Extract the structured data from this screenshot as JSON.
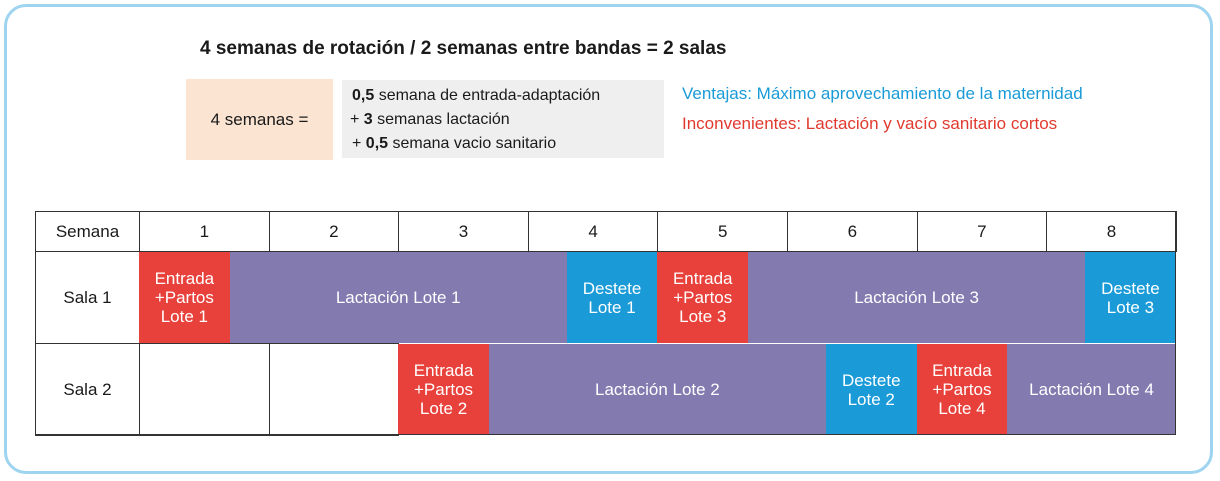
{
  "title": "4 semanas de rotación / 2 semanas entre bandas = 2 salas",
  "equation": {
    "left": "4 semanas =",
    "lines": [
      {
        "prefix": "",
        "num": "0,5",
        "text": " semana de entrada-adaptación"
      },
      {
        "prefix": "+ ",
        "num": "3",
        "text": " semanas lactación"
      },
      {
        "prefix": "+ ",
        "num": "0,5",
        "text": " semana vacio sanitario"
      }
    ]
  },
  "notes": {
    "advantages": "Ventajas: Máximo aprovechamiento de la maternidad",
    "disadvantages": "Inconvenientes: Lactación y vacío sanitario cortos"
  },
  "colors": {
    "entrada": "#e8413b",
    "lactacion": "#837ab0",
    "destete": "#1a9bd7",
    "equation_left_bg": "#fbe5d2",
    "equation_right_bg": "#efefef",
    "frame": "#9fd4f0"
  },
  "schedule": {
    "header_label": "Semana",
    "weeks": [
      "1",
      "2",
      "3",
      "4",
      "5",
      "6",
      "7",
      "8"
    ],
    "rows": [
      {
        "label": "Sala 1",
        "blocks": [
          {
            "kind": "entrada",
            "start_week": 0,
            "end_week": 0.7,
            "lines": [
              "Entrada",
              "+Partos",
              "Lote 1"
            ]
          },
          {
            "kind": "lactacion",
            "start_week": 0.7,
            "end_week": 3.3,
            "lines": [
              "Lactación Lote 1"
            ]
          },
          {
            "kind": "destete",
            "start_week": 3.3,
            "end_week": 4.0,
            "lines": [
              "Destete",
              "Lote 1"
            ]
          },
          {
            "kind": "entrada",
            "start_week": 4.0,
            "end_week": 4.7,
            "lines": [
              "Entrada",
              "+Partos",
              "Lote 3"
            ]
          },
          {
            "kind": "lactacion",
            "start_week": 4.7,
            "end_week": 7.3,
            "lines": [
              "Lactación Lote 3"
            ]
          },
          {
            "kind": "destete",
            "start_week": 7.3,
            "end_week": 8.0,
            "lines": [
              "Destete",
              "Lote 3"
            ]
          }
        ]
      },
      {
        "label": "Sala 2",
        "blocks": [
          {
            "kind": "vacio",
            "start_week": 0,
            "end_week": 1,
            "lines": []
          },
          {
            "kind": "vacio",
            "start_week": 1,
            "end_week": 2,
            "lines": []
          },
          {
            "kind": "entrada",
            "start_week": 2.0,
            "end_week": 2.7,
            "lines": [
              "Entrada",
              "+Partos",
              "Lote 2"
            ]
          },
          {
            "kind": "lactacion",
            "start_week": 2.7,
            "end_week": 5.3,
            "lines": [
              "Lactación Lote 2"
            ]
          },
          {
            "kind": "destete",
            "start_week": 5.3,
            "end_week": 6.0,
            "lines": [
              "Destete",
              "Lote 2"
            ]
          },
          {
            "kind": "entrada",
            "start_week": 6.0,
            "end_week": 6.7,
            "lines": [
              "Entrada",
              "+Partos",
              "Lote 4"
            ]
          },
          {
            "kind": "lactacion",
            "start_week": 6.7,
            "end_week": 8.0,
            "lines": [
              "Lactación Lote 4"
            ]
          }
        ]
      }
    ]
  }
}
